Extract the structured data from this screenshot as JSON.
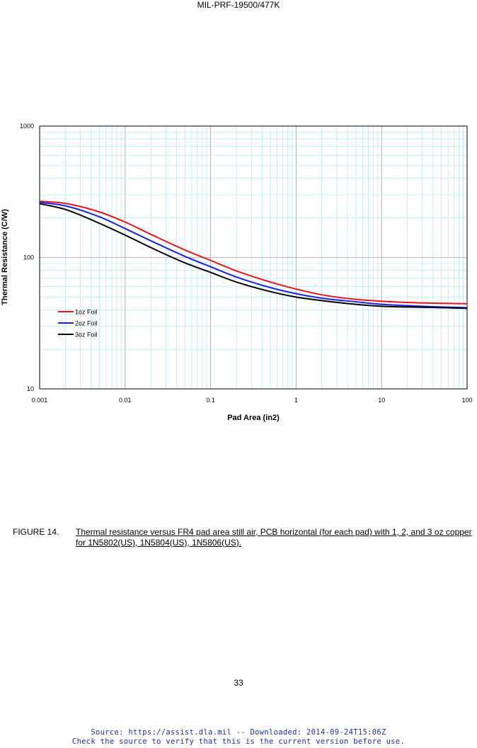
{
  "header": {
    "doc_id": "MIL-PRF-19500/477K"
  },
  "chart_data": {
    "type": "line",
    "title": "",
    "xlabel": "Pad Area (in2)",
    "ylabel": "Thermal Resistance (C/W)",
    "x_scale": "log",
    "y_scale": "log",
    "xlim": [
      0.001,
      100
    ],
    "ylim": [
      10,
      1000
    ],
    "x_ticks": [
      "0.001",
      "0.01",
      "0.1",
      "1",
      "10",
      "100"
    ],
    "y_ticks": [
      "10",
      "100",
      "1000"
    ],
    "grid": true,
    "legend_position": "left",
    "x": [
      0.001,
      0.002,
      0.005,
      0.01,
      0.02,
      0.05,
      0.1,
      0.2,
      0.5,
      1,
      2,
      5,
      10,
      20,
      50,
      100
    ],
    "series": [
      {
        "name": "1oz Foil",
        "color": "#e8141c",
        "values": [
          268,
          258,
          222,
          186,
          150,
          114,
          95,
          79,
          65,
          57.5,
          52,
          48,
          46.5,
          45.5,
          44.8,
          44.5
        ]
      },
      {
        "name": "2oz Foil",
        "color": "#1a22e8",
        "values": [
          263,
          247,
          204,
          166,
          134,
          102,
          85,
          71,
          59,
          53,
          49,
          46,
          44,
          43,
          42,
          41.5
        ]
      },
      {
        "name": "3oz Foil",
        "color": "#000000",
        "values": [
          257,
          232,
          182,
          148,
          119,
          91,
          77,
          65,
          55,
          50,
          47,
          44,
          42.5,
          42,
          41.5,
          41
        ]
      }
    ]
  },
  "caption": {
    "figure_label": "FIGURE 14.",
    "text": "Thermal resistance versus FR4 pad area still air, PCB horizontal (for each pad) with 1, 2, and 3 oz copper for 1N5802(US), 1N5804(US), 1N5806(US)",
    "end": "."
  },
  "page_number": "33",
  "footer": {
    "line1": "Source: https://assist.dla.mil -- Downloaded: 2014-09-24T15:06Z",
    "line2": "Check the source to verify that this is the current version before use."
  }
}
